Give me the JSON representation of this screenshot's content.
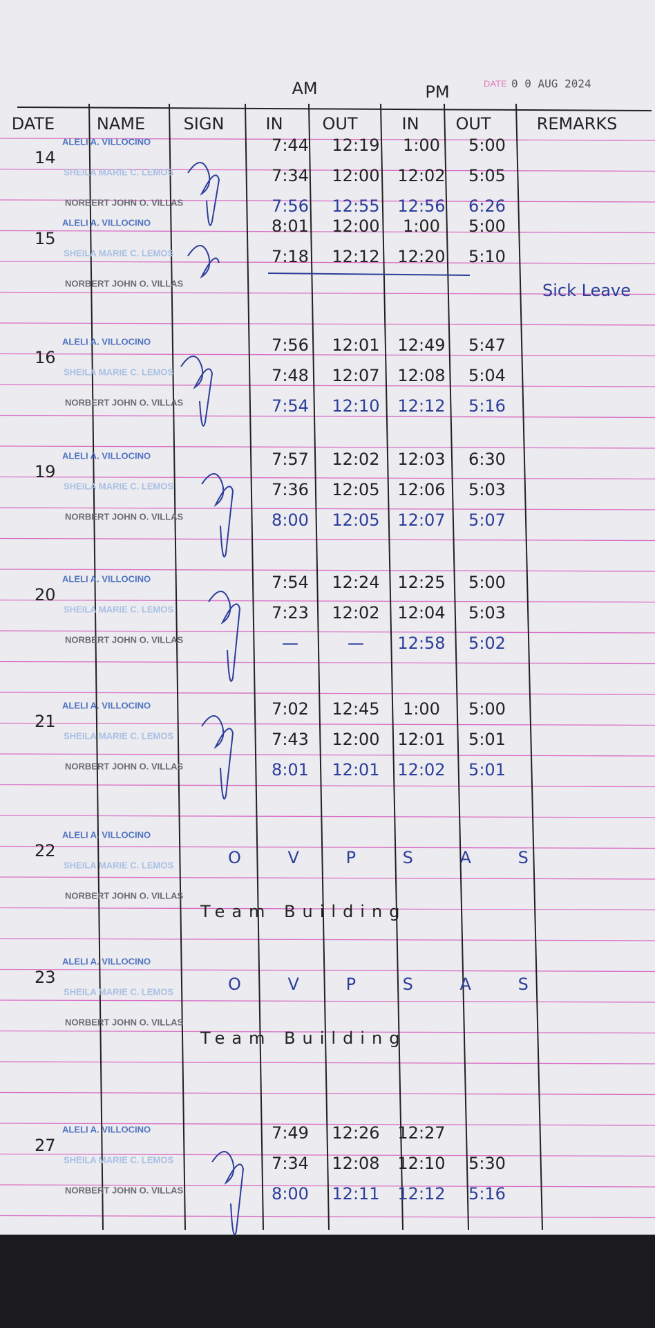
{
  "header": {
    "am": "AM",
    "pm": "PM",
    "date_label": "DATE",
    "date_value": "0 0 AUG 2024"
  },
  "columns": [
    "DATE",
    "NAME",
    "SIGN",
    "IN",
    "OUT",
    "IN",
    "OUT",
    "REMARKS"
  ],
  "entries": [
    {
      "date": "14",
      "rows": [
        {
          "name": "ALELI A. VILLOCINO",
          "times": [
            "7:44",
            "12:19",
            "1:00",
            "5:00"
          ]
        },
        {
          "name": "SHEILA MARIE C. LEMOS",
          "times": [
            "7:34",
            "12:00",
            "12:02",
            "5:05"
          ]
        },
        {
          "name": "NORBERT JOHN O. VILLAS",
          "times": [
            "7:56",
            "12:55",
            "12:56",
            "6:26"
          ]
        }
      ]
    },
    {
      "date": "15",
      "rows": [
        {
          "name": "ALELI A. VILLOCINO",
          "times": [
            "8:01",
            "12:00",
            "1:00",
            "5:00"
          ]
        },
        {
          "name": "SHEILA MARIE C. LEMOS",
          "times": [
            "7:18",
            "12:12",
            "12:20",
            "5:10"
          ]
        },
        {
          "name": "NORBERT JOHN O. VILLAS",
          "remarks": "Sick Leave"
        }
      ]
    },
    {
      "date": "16",
      "rows": [
        {
          "name": "ALELI A. VILLOCINO",
          "times": [
            "7:56",
            "12:01",
            "12:49",
            "5:47"
          ]
        },
        {
          "name": "SHEILA MARIE C. LEMOS",
          "times": [
            "7:48",
            "12:07",
            "12:08",
            "5:04"
          ]
        },
        {
          "name": "NORBERT JOHN O. VILLAS",
          "times": [
            "7:54",
            "12:10",
            "12:12",
            "5:16"
          ]
        }
      ]
    },
    {
      "date": "19",
      "rows": [
        {
          "name": "ALELI A. VILLOCINO",
          "times": [
            "7:57",
            "12:02",
            "12:03",
            "6:30"
          ]
        },
        {
          "name": "SHEILA MARIE C. LEMOS",
          "times": [
            "7:36",
            "12:05",
            "12:06",
            "5:03"
          ]
        },
        {
          "name": "NORBERT JOHN O. VILLAS",
          "times": [
            "8:00",
            "12:05",
            "12:07",
            "5:07"
          ]
        }
      ]
    },
    {
      "date": "20",
      "rows": [
        {
          "name": "ALELI A. VILLOCINO",
          "times": [
            "7:54",
            "12:24",
            "12:25",
            "5:00"
          ]
        },
        {
          "name": "SHEILA MARIE C. LEMOS",
          "times": [
            "7:23",
            "12:02",
            "12:04",
            "5:03"
          ]
        },
        {
          "name": "NORBERT JOHN O. VILLAS",
          "times": [
            "—",
            "—",
            "12:58",
            "5:02"
          ]
        }
      ]
    },
    {
      "date": "21",
      "rows": [
        {
          "name": "ALELI A. VILLOCINO",
          "times": [
            "7:02",
            "12:45",
            "1:00",
            "5:00"
          ]
        },
        {
          "name": "SHEILA MARIE C. LEMOS",
          "times": [
            "7:43",
            "12:00",
            "12:01",
            "5:01"
          ]
        },
        {
          "name": "NORBERT JOHN O. VILLAS",
          "times": [
            "8:01",
            "12:01",
            "12:02",
            "5:01"
          ]
        }
      ]
    },
    {
      "date": "22",
      "notes": [
        "O V P S A S",
        "Team Building"
      ],
      "rows": [
        {
          "name": "ALELI A. VILLOCINO"
        },
        {
          "name": "SHEILA MARIE C. LEMOS"
        },
        {
          "name": "NORBERT JOHN O. VILLAS"
        }
      ]
    },
    {
      "date": "23",
      "notes": [
        "O V P S A S",
        "Team Building"
      ],
      "rows": [
        {
          "name": "ALELI A. VILLOCINO"
        },
        {
          "name": "SHEILA MARIE C. LEMOS"
        },
        {
          "name": "NORBERT JOHN O. VILLAS"
        }
      ]
    },
    {
      "date": "27",
      "rows": [
        {
          "name": "ALELI A. VILLOCINO",
          "times": [
            "7:49",
            "12:26",
            "12:27"
          ]
        },
        {
          "name": "SHEILA MARIE C. LEMOS",
          "times": [
            "7:34",
            "12:08",
            "12:10",
            "5:30"
          ]
        },
        {
          "name": "NORBERT JOHN O. VILLAS",
          "times": [
            "8:00",
            "12:11",
            "12:12",
            "5:16"
          ]
        }
      ]
    }
  ]
}
